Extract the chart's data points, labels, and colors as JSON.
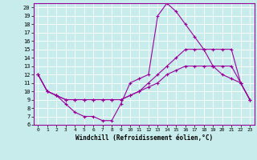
{
  "title": "",
  "xlabel": "Windchill (Refroidissement éolien,°C)",
  "bg_color": "#c8ecec",
  "line_color": "#990099",
  "grid_color": "#ffffff",
  "spine_color": "#990099",
  "xlim": [
    -0.5,
    23.5
  ],
  "ylim": [
    6,
    20.5
  ],
  "xticks": [
    0,
    1,
    2,
    3,
    4,
    5,
    6,
    7,
    8,
    9,
    10,
    11,
    12,
    13,
    14,
    15,
    16,
    17,
    18,
    19,
    20,
    21,
    22,
    23
  ],
  "yticks": [
    6,
    7,
    8,
    9,
    10,
    11,
    12,
    13,
    14,
    15,
    16,
    17,
    18,
    19,
    20
  ],
  "line1_x": [
    0,
    1,
    2,
    3,
    4,
    5,
    6,
    7,
    8,
    9,
    10,
    11,
    12,
    13,
    14,
    15,
    16,
    17,
    18,
    19,
    20,
    21,
    22,
    23
  ],
  "line1_y": [
    12,
    10,
    9.5,
    8.5,
    7.5,
    7,
    7,
    6.5,
    6.5,
    8.5,
    11,
    11.5,
    12,
    19,
    20.5,
    19.5,
    18,
    16.5,
    15,
    13,
    12,
    11.5,
    11,
    9
  ],
  "line2_x": [
    0,
    1,
    2,
    3,
    4,
    5,
    6,
    7,
    8,
    9,
    10,
    11,
    12,
    13,
    14,
    15,
    16,
    17,
    18,
    19,
    20,
    21,
    22,
    23
  ],
  "line2_y": [
    12,
    10,
    9.5,
    9,
    9,
    9,
    9,
    9,
    9,
    9,
    9.5,
    10,
    11,
    12,
    13,
    14,
    15,
    15,
    15,
    15,
    15,
    15,
    11,
    9
  ],
  "line3_x": [
    0,
    1,
    2,
    3,
    4,
    5,
    6,
    7,
    8,
    9,
    10,
    11,
    12,
    13,
    14,
    15,
    16,
    17,
    18,
    19,
    20,
    21,
    22,
    23
  ],
  "line3_y": [
    12,
    10,
    9.5,
    9,
    9,
    9,
    9,
    9,
    9,
    9,
    9.5,
    10,
    10.5,
    11,
    12,
    12.5,
    13,
    13,
    13,
    13,
    13,
    13,
    11,
    9
  ]
}
